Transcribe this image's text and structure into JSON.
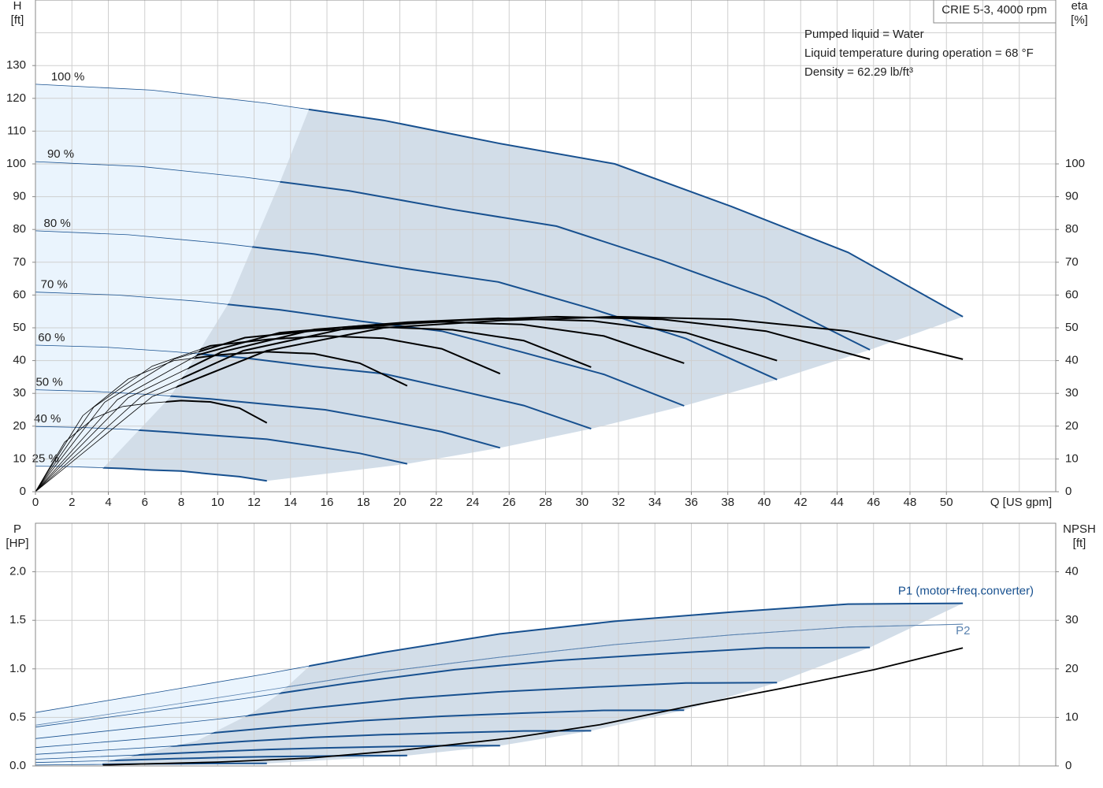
{
  "chart_data": [
    {
      "type": "line",
      "info_box": "CRIE 5-3, 4000 rpm",
      "notes": [
        "Pumped liquid = Water",
        "Liquid temperature during operation = 68 °F",
        "Density = 62.29 lb/ft³"
      ],
      "x_label": "Q [US gpm]",
      "y_label": "H",
      "y_unit": "[ft]",
      "y2_label": "eta",
      "y2_unit": "[%]",
      "xlim": [
        0,
        56
      ],
      "xticks": [
        0,
        2,
        4,
        6,
        8,
        10,
        12,
        14,
        16,
        18,
        20,
        22,
        24,
        26,
        28,
        30,
        32,
        34,
        36,
        38,
        40,
        42,
        44,
        46,
        48,
        50
      ],
      "xgrid": [
        0,
        2,
        4,
        6,
        8,
        10,
        12,
        14,
        16,
        18,
        20,
        22,
        24,
        26,
        28,
        30,
        32,
        34,
        36,
        38,
        40,
        42,
        44,
        46,
        48,
        50,
        52,
        54
      ],
      "ylim": [
        0,
        150
      ],
      "yticks": [
        0,
        10,
        20,
        30,
        40,
        50,
        60,
        70,
        80,
        90,
        100,
        110,
        120,
        130
      ],
      "ygrid": [
        0,
        10,
        20,
        30,
        40,
        50,
        60,
        70,
        80,
        90,
        100,
        110,
        120,
        130,
        140
      ],
      "y2lim": [
        0,
        150
      ],
      "y2ticks": [
        0,
        10,
        20,
        30,
        40,
        50,
        60,
        70,
        80,
        90,
        100
      ],
      "series": [
        {
          "name": "100 %",
          "color": "#17508f",
          "x": [
            0,
            6.4,
            12.7,
            19.1,
            25.5,
            31.8,
            38.2,
            44.6,
            50.9
          ],
          "values": [
            124.3,
            122.5,
            118.5,
            113.3,
            106.2,
            100,
            87,
            73,
            53.4
          ]
        },
        {
          "name": "90 %",
          "color": "#17508f",
          "x": [
            0,
            5.8,
            11.4,
            17.2,
            23,
            28.6,
            34.4,
            40.1,
            45.8
          ],
          "values": [
            100.7,
            99.2,
            96,
            91.8,
            86,
            81,
            70.5,
            59.1,
            43.3
          ]
        },
        {
          "name": "80 %",
          "color": "#17508f",
          "x": [
            0,
            5.1,
            10.2,
            15.3,
            20.4,
            25.4,
            30.6,
            35.7,
            40.7
          ],
          "values": [
            79.6,
            78.4,
            75.8,
            72.5,
            68,
            64,
            55.7,
            46.7,
            34.2
          ]
        },
        {
          "name": "70 %",
          "color": "#17508f",
          "x": [
            0,
            4.5,
            8.9,
            13.4,
            17.9,
            22.3,
            26.7,
            31.2,
            35.6
          ],
          "values": [
            60.9,
            60,
            58.1,
            55.5,
            52,
            49,
            42.6,
            35.8,
            26.2
          ]
        },
        {
          "name": "60 %",
          "color": "#17508f",
          "x": [
            0,
            3.8,
            7.6,
            11.5,
            15.3,
            19.1,
            22.9,
            26.8,
            30.5
          ],
          "values": [
            44.7,
            44.1,
            42.7,
            40.8,
            38.2,
            36,
            31.3,
            26.3,
            19.2
          ]
        },
        {
          "name": "50 %",
          "color": "#17508f",
          "x": [
            0,
            3.2,
            6.4,
            9.6,
            12.8,
            15.9,
            19.1,
            22.3,
            25.5
          ],
          "values": [
            31.1,
            30.6,
            29.6,
            28.3,
            26.6,
            25,
            21.8,
            18.3,
            13.4
          ]
        },
        {
          "name": "40 %",
          "color": "#17508f",
          "x": [
            0,
            2.6,
            5.1,
            7.6,
            10.2,
            12.7,
            15.3,
            17.8,
            20.4
          ],
          "values": [
            19.9,
            19.6,
            19,
            18.1,
            17,
            16,
            13.9,
            11.7,
            8.5
          ]
        },
        {
          "name": "25 %",
          "color": "#17508f",
          "x": [
            0,
            1.6,
            3.2,
            4.8,
            6.4,
            8,
            9.6,
            11.2,
            12.7
          ],
          "values": [
            7.8,
            7.7,
            7.4,
            7.1,
            6.6,
            6.3,
            5.4,
            4.6,
            3.3
          ]
        },
        {
          "color": "#000000",
          "axis": "y2",
          "x": [
            0,
            6.4,
            12.7,
            19.1,
            25.5,
            31.8,
            38.2,
            44.6,
            50.9
          ],
          "values": [
            0,
            29,
            43,
            50,
            52.2,
            53.4,
            52.6,
            49,
            40.4
          ]
        },
        {
          "color": "#000000",
          "axis": "y2",
          "x": [
            0,
            5.8,
            11.4,
            17.2,
            23,
            28.6,
            34.4,
            40.1,
            45.8
          ],
          "values": [
            0,
            29,
            43,
            50,
            52.2,
            53.4,
            52.6,
            49,
            40.4
          ]
        },
        {
          "color": "#000000",
          "axis": "y2",
          "x": [
            0,
            5.1,
            10.2,
            15.3,
            20.4,
            25.4,
            30.6,
            35.7,
            40.7
          ],
          "values": [
            0,
            28.7,
            42.6,
            49.5,
            51.7,
            52.9,
            52.1,
            48.5,
            40
          ]
        },
        {
          "color": "#000000",
          "axis": "y2",
          "x": [
            0,
            4.5,
            8.9,
            13.4,
            17.9,
            22.3,
            26.7,
            31.2,
            35.6
          ],
          "values": [
            0,
            28.1,
            41.7,
            48.5,
            50.6,
            51.8,
            51,
            47.5,
            39.2
          ]
        },
        {
          "color": "#000000",
          "axis": "y2",
          "x": [
            0,
            3.8,
            7.6,
            11.5,
            15.3,
            19.1,
            22.9,
            26.8,
            30.5
          ],
          "values": [
            0,
            27.3,
            40.4,
            47,
            49.1,
            50.2,
            49.4,
            46.1,
            38
          ]
        },
        {
          "color": "#000000",
          "axis": "y2",
          "x": [
            0,
            3.2,
            6.4,
            9.6,
            12.8,
            15.9,
            19.1,
            22.3,
            25.5
          ],
          "values": [
            0,
            25.8,
            38.3,
            44.5,
            46.5,
            47.5,
            46.8,
            43.6,
            36
          ]
        },
        {
          "color": "#000000",
          "axis": "y2",
          "x": [
            0,
            2.6,
            5.1,
            7.6,
            10.2,
            12.7,
            15.3,
            17.8,
            20.4
          ],
          "values": [
            0,
            23.2,
            34.4,
            40,
            41.8,
            42.7,
            42.1,
            39.2,
            32.3
          ]
        },
        {
          "color": "#000000",
          "axis": "y2",
          "x": [
            0,
            1.6,
            3.2,
            4.8,
            6.4,
            8,
            9.6,
            11.2,
            12.7
          ],
          "values": [
            0,
            15.1,
            22.4,
            26,
            27.1,
            27.8,
            27.4,
            25.5,
            21
          ]
        }
      ]
    },
    {
      "type": "line",
      "y_label": "P",
      "y_unit": "[HP]",
      "y2_label": "NPSH",
      "y2_unit": "[ft]",
      "xlim": [
        0,
        56
      ],
      "xgrid": [
        0,
        2,
        4,
        6,
        8,
        10,
        12,
        14,
        16,
        18,
        20,
        22,
        24,
        26,
        28,
        30,
        32,
        34,
        36,
        38,
        40,
        42,
        44,
        46,
        48,
        50,
        52,
        54
      ],
      "ylim": [
        0,
        2.5
      ],
      "yticks": [
        {
          "value": 0,
          "label": "0.0"
        },
        0.5,
        {
          "value": 1,
          "label": "1.0"
        },
        1.5,
        {
          "value": 2,
          "label": "2.0"
        }
      ],
      "y2lim": [
        0,
        50
      ],
      "y2ticks": [
        0,
        10,
        20,
        30,
        40
      ],
      "series": [
        {
          "name": "P1 (motor+freq.converter)",
          "color": "#17508f",
          "x": [
            0,
            6.4,
            12.7,
            19.1,
            25.5,
            31.8,
            38.2,
            44.6,
            50.9
          ],
          "values": [
            0.55,
            0.75,
            0.95,
            1.17,
            1.36,
            1.49,
            1.585,
            1.667,
            1.675
          ]
        },
        {
          "color": "#17508f",
          "x": [
            0,
            5.8,
            11.4,
            17.2,
            23,
            28.6,
            34.4,
            40.1,
            45.8
          ],
          "values": [
            0.4,
            0.547,
            0.693,
            0.853,
            0.991,
            1.086,
            1.155,
            1.215,
            1.221
          ]
        },
        {
          "color": "#17508f",
          "x": [
            0,
            5.1,
            10.2,
            15.3,
            20.4,
            25.4,
            30.6,
            35.7,
            40.7
          ],
          "values": [
            0.282,
            0.384,
            0.486,
            0.599,
            0.696,
            0.763,
            0.812,
            0.854,
            0.858
          ]
        },
        {
          "color": "#17508f",
          "x": [
            0,
            4.5,
            8.9,
            13.4,
            17.9,
            22.3,
            26.7,
            31.2,
            35.6
          ],
          "values": [
            0.189,
            0.257,
            0.326,
            0.401,
            0.466,
            0.511,
            0.544,
            0.572,
            0.575
          ]
        },
        {
          "color": "#17508f",
          "x": [
            0,
            3.8,
            7.6,
            11.5,
            15.3,
            19.1,
            22.9,
            26.8,
            30.5
          ],
          "values": [
            0.119,
            0.162,
            0.205,
            0.253,
            0.294,
            0.322,
            0.342,
            0.36,
            0.362
          ]
        },
        {
          "color": "#17508f",
          "x": [
            0,
            3.2,
            6.4,
            9.6,
            12.8,
            15.9,
            19.1,
            22.3,
            25.5
          ],
          "values": [
            0.069,
            0.094,
            0.119,
            0.146,
            0.17,
            0.186,
            0.198,
            0.208,
            0.209
          ]
        },
        {
          "color": "#17508f",
          "x": [
            0,
            2.6,
            5.1,
            7.6,
            10.2,
            12.7,
            15.3,
            17.8,
            20.4
          ],
          "values": [
            0.035,
            0.048,
            0.061,
            0.075,
            0.087,
            0.095,
            0.101,
            0.106,
            0.107
          ]
        },
        {
          "color": "#17508f",
          "x": [
            0,
            1.6,
            3.2,
            4.8,
            6.4,
            8,
            9.6,
            11.2,
            12.7
          ],
          "values": [
            0.009,
            0.012,
            0.015,
            0.018,
            0.021,
            0.023,
            0.025,
            0.026,
            0.026
          ]
        },
        {
          "name": "P2",
          "color": "#5b83b0",
          "x": [
            0,
            6.4,
            12.7,
            19.1,
            25.5,
            31.8,
            38.2,
            44.6,
            50.9
          ],
          "values": [
            0.42,
            0.6,
            0.78,
            0.97,
            1.12,
            1.25,
            1.35,
            1.43,
            1.46
          ]
        },
        {
          "color": "#000000",
          "axis": "y2",
          "x": [
            3.7,
            10,
            15,
            20,
            26,
            31,
            36,
            41,
            46,
            50.9
          ],
          "values": [
            0.2,
            0.8,
            1.6,
            3.2,
            5.7,
            8.5,
            12.4,
            16,
            19.8,
            24.3
          ]
        }
      ]
    }
  ]
}
